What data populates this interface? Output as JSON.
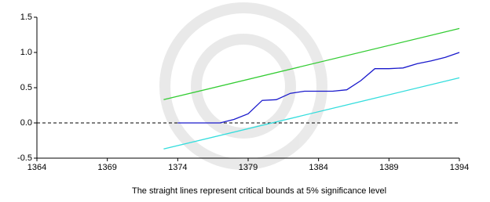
{
  "chart_data": {
    "type": "line",
    "xlabel": "The straight lines represent critical bounds at 5% significance level",
    "xlim": [
      1364,
      1394
    ],
    "xticks": [
      1364,
      1369,
      1374,
      1379,
      1384,
      1389,
      1394
    ],
    "ylim": [
      -0.5,
      1.5
    ],
    "yticks": [
      {
        "value": -0.5,
        "label": "-0.5"
      },
      {
        "value": 0,
        "label": "0.0"
      },
      0.5,
      {
        "value": 1,
        "label": "1.0"
      },
      1.5
    ],
    "hline": 0,
    "hline_color": "#000000",
    "series": [
      {
        "color": "#1a1acc",
        "x": [
          1374,
          1375,
          1376,
          1377,
          1378,
          1379,
          1380,
          1381,
          1382,
          1383,
          1384,
          1385,
          1386,
          1387,
          1388,
          1389,
          1390,
          1391,
          1392,
          1393,
          1394
        ],
        "values": [
          0,
          0,
          0,
          0,
          0.05,
          0.13,
          0.32,
          0.33,
          0.42,
          0.45,
          0.45,
          0.45,
          0.47,
          0.6,
          0.77,
          0.77,
          0.78,
          0.84,
          0.88,
          0.93,
          1.0
        ]
      },
      {
        "color": "#33cc33",
        "x": [
          1373,
          1394
        ],
        "values": [
          0.33,
          1.34
        ]
      },
      {
        "color": "#33dddd",
        "x": [
          1373,
          1394
        ],
        "values": [
          -0.37,
          0.64
        ]
      }
    ]
  }
}
